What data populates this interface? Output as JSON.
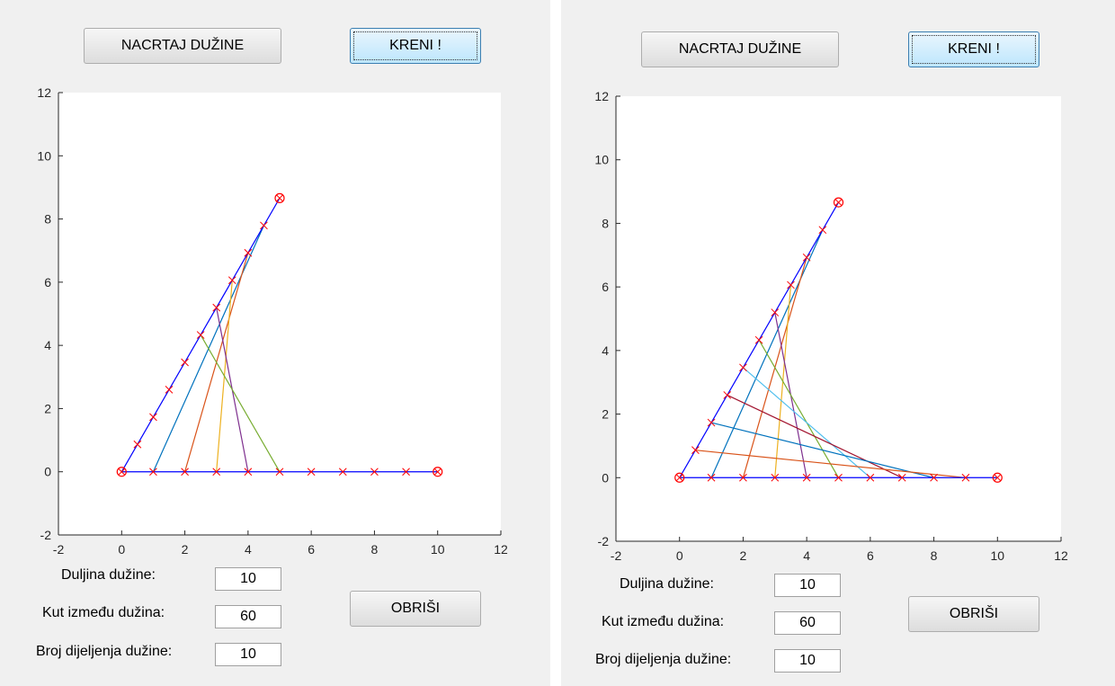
{
  "panels": [
    {
      "draw_button": "NACRTAJ DUŽINE",
      "go_button": "KRENI !",
      "clear_button": "OBRIŠI",
      "length_label": "Duljina dužine:",
      "length_value": "10",
      "angle_label": "Kut između dužina:",
      "angle_value": "60",
      "divisions_label": "Broj dijeljenja dužine:",
      "divisions_value": "10",
      "chart_data": {
        "type": "line",
        "xlim": [
          -2,
          12
        ],
        "ylim": [
          -2,
          12
        ],
        "xticks": [
          -2,
          0,
          2,
          4,
          6,
          8,
          10,
          12
        ],
        "yticks": [
          -2,
          0,
          2,
          4,
          6,
          8,
          10,
          12
        ],
        "segment_length": 10,
        "angle_deg": 60,
        "divisions": 10,
        "endpoints": [
          [
            0,
            0
          ],
          [
            10,
            0
          ],
          [
            5,
            8.66
          ]
        ],
        "connected_steps": [
          1,
          2,
          3,
          4,
          5
        ],
        "marker_color": "#ff0000",
        "segment_color": "#0000ff"
      }
    },
    {
      "draw_button": "NACRTAJ DUŽINE",
      "go_button": "KRENI !",
      "clear_button": "OBRIŠI",
      "length_label": "Duljina dužine:",
      "length_value": "10",
      "angle_label": "Kut između dužina:",
      "angle_value": "60",
      "divisions_label": "Broj dijeljenja dužine:",
      "divisions_value": "10",
      "chart_data": {
        "type": "line",
        "xlim": [
          -2,
          12
        ],
        "ylim": [
          -2,
          12
        ],
        "xticks": [
          -2,
          0,
          2,
          4,
          6,
          8,
          10,
          12
        ],
        "yticks": [
          -2,
          0,
          2,
          4,
          6,
          8,
          10,
          12
        ],
        "segment_length": 10,
        "angle_deg": 60,
        "divisions": 10,
        "endpoints": [
          [
            0,
            0
          ],
          [
            10,
            0
          ],
          [
            5,
            8.66
          ]
        ],
        "connected_steps": [
          1,
          2,
          3,
          4,
          5,
          6,
          7,
          8,
          9
        ],
        "marker_color": "#ff0000",
        "segment_color": "#0000ff"
      }
    }
  ],
  "line_colors": [
    "#0072bd",
    "#d95319",
    "#edb120",
    "#7e2f8e",
    "#77ac30",
    "#4dbeee",
    "#a2142f"
  ]
}
